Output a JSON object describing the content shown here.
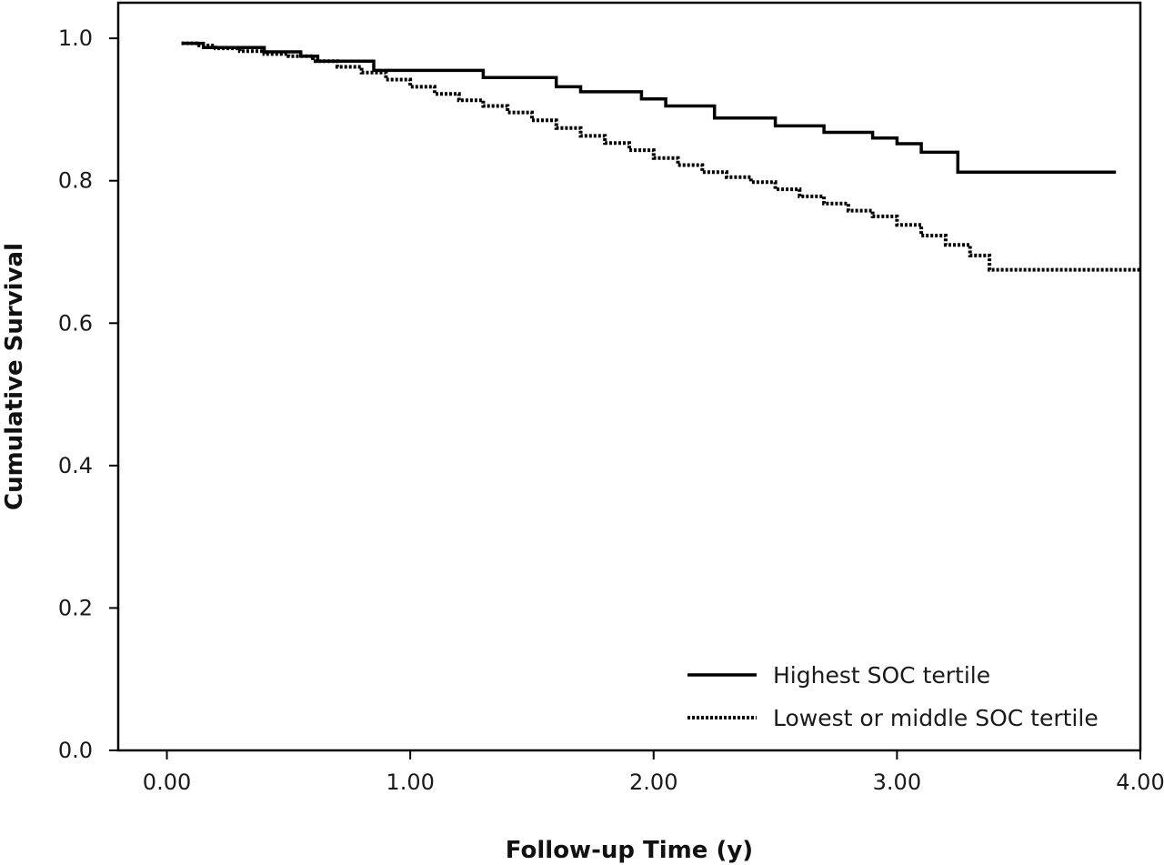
{
  "chart_data": {
    "type": "line",
    "xlabel": "Follow-up Time (y)",
    "ylabel": "Cumulative Survival",
    "xlim": [
      -0.2,
      4.0
    ],
    "ylim": [
      0.0,
      1.05
    ],
    "x_ticks": [
      0,
      1,
      2,
      3,
      4
    ],
    "x_tick_labels": [
      "0.00",
      "1.00",
      "2.00",
      "3.00",
      "4.00"
    ],
    "y_ticks": [
      0,
      0.2,
      0.4,
      0.6,
      0.8,
      1.0
    ],
    "y_tick_labels": [
      "0.0",
      "0.2",
      "0.4",
      "0.6",
      "0.8",
      "1.0"
    ],
    "step": true,
    "grid": false,
    "legend_position": "bottom-right",
    "series": [
      {
        "name": "Highest SOC tertile",
        "style": "solid",
        "color": "#000000",
        "x": [
          0.06,
          0.15,
          0.4,
          0.55,
          0.62,
          0.85,
          1.3,
          1.6,
          1.7,
          1.95,
          2.05,
          2.25,
          2.5,
          2.7,
          2.9,
          3.0,
          3.1,
          3.25,
          3.9
        ],
        "y": [
          0.993,
          0.987,
          0.981,
          0.975,
          0.968,
          0.955,
          0.945,
          0.932,
          0.925,
          0.915,
          0.905,
          0.888,
          0.877,
          0.868,
          0.86,
          0.852,
          0.84,
          0.812,
          0.812
        ]
      },
      {
        "name": "Lowest or middle SOC tertile",
        "style": "dotted",
        "color": "#000000",
        "x": [
          0.06,
          0.12,
          0.2,
          0.3,
          0.4,
          0.5,
          0.6,
          0.7,
          0.8,
          0.9,
          1.0,
          1.1,
          1.2,
          1.3,
          1.4,
          1.5,
          1.6,
          1.7,
          1.8,
          1.9,
          2.0,
          2.1,
          2.2,
          2.3,
          2.4,
          2.5,
          2.6,
          2.7,
          2.8,
          2.9,
          3.0,
          3.1,
          3.2,
          3.3,
          3.38,
          4.0
        ],
        "y": [
          0.993,
          0.99,
          0.986,
          0.982,
          0.978,
          0.975,
          0.968,
          0.96,
          0.952,
          0.942,
          0.932,
          0.922,
          0.913,
          0.905,
          0.896,
          0.885,
          0.874,
          0.863,
          0.853,
          0.843,
          0.832,
          0.822,
          0.812,
          0.805,
          0.798,
          0.788,
          0.778,
          0.768,
          0.758,
          0.75,
          0.738,
          0.723,
          0.71,
          0.695,
          0.675,
          0.675
        ]
      }
    ]
  }
}
